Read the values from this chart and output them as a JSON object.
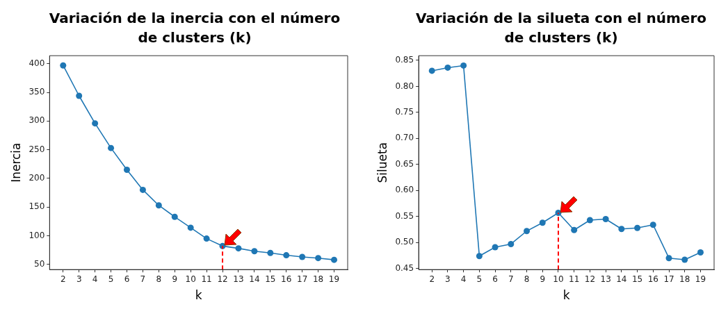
{
  "chart_data": [
    {
      "type": "line",
      "title": "Variación de la inercia con el número de clusters (k)",
      "xlabel": "k",
      "ylabel": "Inercia",
      "x": [
        2,
        3,
        4,
        5,
        6,
        7,
        8,
        9,
        10,
        11,
        12,
        13,
        14,
        15,
        16,
        17,
        18,
        19
      ],
      "series": [
        {
          "color": "#1f77b4",
          "values": [
            397,
            344,
            296,
            253,
            215,
            180,
            153,
            133,
            114,
            95,
            82,
            78,
            73,
            70,
            66,
            63,
            61,
            58
          ]
        }
      ],
      "xlim": [
        1.15,
        19.85
      ],
      "xticks": [
        2,
        3,
        4,
        5,
        6,
        7,
        8,
        9,
        10,
        11,
        12,
        13,
        14,
        15,
        16,
        17,
        18,
        19
      ],
      "ylim": [
        41,
        414
      ],
      "yticks": [
        50,
        100,
        150,
        200,
        250,
        300,
        350,
        400
      ],
      "marker": "circle",
      "line_style": "solid",
      "grid": false,
      "legend": false,
      "ref_lines": [
        {
          "axis": "x",
          "value": 12,
          "color": "#ff0000",
          "line_style": "dashed"
        }
      ]
    },
    {
      "type": "line",
      "title": "Variación de la silueta con el número de clusters (k)",
      "xlabel": "k",
      "ylabel": "Silueta",
      "x": [
        2,
        3,
        4,
        5,
        6,
        7,
        8,
        9,
        10,
        11,
        12,
        13,
        14,
        15,
        16,
        17,
        18,
        19
      ],
      "series": [
        {
          "color": "#1f77b4",
          "values": [
            0.83,
            0.836,
            0.84,
            0.474,
            0.491,
            0.497,
            0.522,
            0.538,
            0.557,
            0.524,
            0.543,
            0.545,
            0.526,
            0.528,
            0.534,
            0.47,
            0.467,
            0.481
          ]
        }
      ],
      "xlim": [
        1.16,
        19.86
      ],
      "xticks": [
        2,
        3,
        4,
        5,
        6,
        7,
        8,
        9,
        10,
        11,
        12,
        13,
        14,
        15,
        16,
        17,
        18,
        19
      ],
      "ylim": [
        0.448,
        0.859
      ],
      "yticks": [
        {
          "value": 0.45,
          "label": "0.45"
        },
        {
          "value": 0.5,
          "label": "0.50"
        },
        {
          "value": 0.55,
          "label": "0.55"
        },
        {
          "value": 0.6,
          "label": "0.60"
        },
        {
          "value": 0.65,
          "label": "0.65"
        },
        {
          "value": 0.7,
          "label": "0.70"
        },
        {
          "value": 0.75,
          "label": "0.75"
        },
        {
          "value": 0.8,
          "label": "0.80"
        },
        {
          "value": 0.85,
          "label": "0.85"
        }
      ],
      "marker": "circle",
      "line_style": "solid",
      "grid": false,
      "legend": false,
      "ref_lines": [
        {
          "axis": "x",
          "value": 10,
          "color": "#ff0000",
          "line_style": "dashed"
        }
      ]
    }
  ]
}
